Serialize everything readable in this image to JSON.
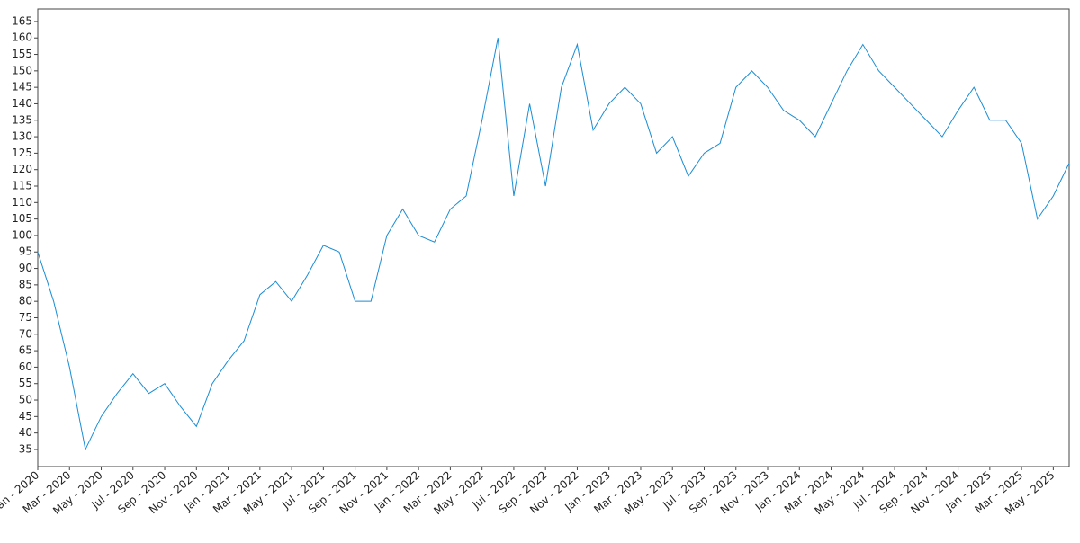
{
  "chart_data": {
    "type": "line",
    "x": [
      "2020-01",
      "2020-02",
      "2020-03",
      "2020-04",
      "2020-05",
      "2020-06",
      "2020-07",
      "2020-08",
      "2020-09",
      "2020-10",
      "2020-11",
      "2020-12",
      "2021-01",
      "2021-02",
      "2021-03",
      "2021-04",
      "2021-05",
      "2021-06",
      "2021-07",
      "2021-08",
      "2021-09",
      "2021-10",
      "2021-11",
      "2021-12",
      "2022-01",
      "2022-02",
      "2022-03",
      "2022-04",
      "2022-05",
      "2022-06",
      "2022-07",
      "2022-08",
      "2022-09",
      "2022-10",
      "2022-11",
      "2022-12",
      "2023-01",
      "2023-02",
      "2023-03",
      "2023-04",
      "2023-05",
      "2023-06",
      "2023-07",
      "2023-08",
      "2023-09",
      "2023-10",
      "2023-11",
      "2023-12",
      "2024-01",
      "2024-02",
      "2024-03",
      "2024-04",
      "2024-05",
      "2024-06",
      "2024-07",
      "2024-08",
      "2024-09",
      "2024-10",
      "2024-11",
      "2024-12",
      "2025-01",
      "2025-02",
      "2025-03",
      "2025-04",
      "2025-05",
      "2025-06"
    ],
    "series": [
      {
        "color": "#1a8dd5",
        "values": [
          95,
          80,
          60,
          35,
          45,
          52,
          58,
          52,
          55,
          48,
          42,
          55,
          62,
          68,
          82,
          86,
          80,
          88,
          97,
          95,
          80,
          80,
          100,
          108,
          100,
          98,
          108,
          112,
          135,
          160,
          112,
          140,
          115,
          145,
          158,
          132,
          140,
          145,
          140,
          125,
          130,
          118,
          125,
          128,
          145,
          150,
          145,
          138,
          135,
          130,
          140,
          150,
          158,
          150,
          145,
          140,
          135,
          130,
          138,
          145,
          135,
          135,
          128,
          105,
          112,
          122
        ]
      }
    ],
    "xlim": [
      "2020-01",
      "2025-06"
    ],
    "xticks": [
      {
        "value": "2020-01",
        "label": "Jan - 2020"
      },
      {
        "value": "2020-03",
        "label": "Mar - 2020"
      },
      {
        "value": "2020-05",
        "label": "May - 2020"
      },
      {
        "value": "2020-07",
        "label": "Jul - 2020"
      },
      {
        "value": "2020-09",
        "label": "Sep - 2020"
      },
      {
        "value": "2020-11",
        "label": "Nov - 2020"
      },
      {
        "value": "2021-01",
        "label": "Jan - 2021"
      },
      {
        "value": "2021-03",
        "label": "Mar - 2021"
      },
      {
        "value": "2021-05",
        "label": "May - 2021"
      },
      {
        "value": "2021-07",
        "label": "Jul - 2021"
      },
      {
        "value": "2021-09",
        "label": "Sep - 2021"
      },
      {
        "value": "2021-11",
        "label": "Nov - 2021"
      },
      {
        "value": "2022-01",
        "label": "Jan - 2022"
      },
      {
        "value": "2022-03",
        "label": "Mar - 2022"
      },
      {
        "value": "2022-05",
        "label": "May - 2022"
      },
      {
        "value": "2022-07",
        "label": "Jul - 2022"
      },
      {
        "value": "2022-09",
        "label": "Sep - 2022"
      },
      {
        "value": "2022-11",
        "label": "Nov - 2022"
      },
      {
        "value": "2023-01",
        "label": "Jan - 2023"
      },
      {
        "value": "2023-03",
        "label": "Mar - 2023"
      },
      {
        "value": "2023-05",
        "label": "May - 2023"
      },
      {
        "value": "2023-07",
        "label": "Jul - 2023"
      },
      {
        "value": "2023-09",
        "label": "Sep - 2023"
      },
      {
        "value": "2023-11",
        "label": "Nov - 2023"
      },
      {
        "value": "2024-01",
        "label": "Jan - 2024"
      },
      {
        "value": "2024-03",
        "label": "Mar - 2024"
      },
      {
        "value": "2024-05",
        "label": "May - 2024"
      },
      {
        "value": "2024-07",
        "label": "Jul - 2024"
      },
      {
        "value": "2024-09",
        "label": "Sep - 2024"
      },
      {
        "value": "2024-11",
        "label": "Nov - 2024"
      },
      {
        "value": "2025-01",
        "label": "Jan - 2025"
      },
      {
        "value": "2025-03",
        "label": "Mar - 2025"
      },
      {
        "value": "2025-05",
        "label": "May - 2025"
      }
    ],
    "ylim": [
      29.8,
      168.8
    ],
    "yticks": [
      35,
      40,
      45,
      50,
      55,
      60,
      65,
      70,
      75,
      80,
      85,
      90,
      95,
      100,
      105,
      110,
      115,
      120,
      125,
      130,
      135,
      140,
      145,
      150,
      155,
      160,
      165
    ],
    "grid": false
  }
}
